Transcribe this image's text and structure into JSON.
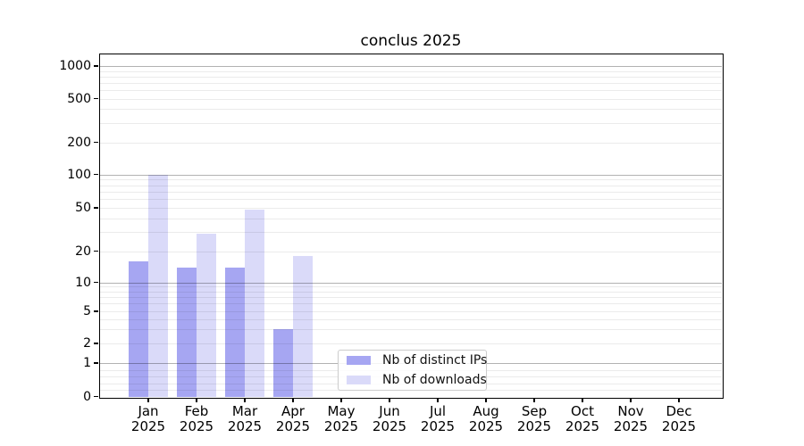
{
  "figure": {
    "title": "conclus 2025"
  },
  "chart_data": {
    "type": "bar",
    "title": "conclus 2025",
    "yscale": "symlog",
    "ylim": [
      0,
      1000
    ],
    "y_ticks": [
      0,
      1,
      2,
      5,
      10,
      20,
      50,
      100,
      200,
      500,
      1000
    ],
    "grid": "horizontal major (1,10,100,1000) + faint minor log lines",
    "categories": [
      "Jan",
      "Feb",
      "Mar",
      "Apr",
      "May",
      "Jun",
      "Jul",
      "Aug",
      "Sep",
      "Oct",
      "Nov",
      "Dec"
    ],
    "category_year": "2025",
    "series": [
      {
        "name": "Nb of distinct IPs",
        "color": "#a6a6f2",
        "values": [
          16,
          14,
          14,
          3,
          null,
          null,
          null,
          null,
          null,
          null,
          null,
          null
        ]
      },
      {
        "name": "Nb of downloads",
        "color": "#dadaf9",
        "values": [
          100,
          29,
          48,
          18,
          null,
          null,
          null,
          null,
          null,
          null,
          null,
          null
        ]
      }
    ],
    "legend_position": "lower center"
  }
}
